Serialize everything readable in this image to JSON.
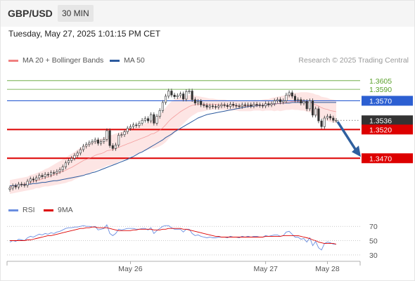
{
  "header": {
    "pair": "GBP/USD",
    "timeframe": "30 MIN"
  },
  "datetime": "Tuesday, May 27, 2025 1:01:15 PM CET",
  "legend": {
    "ma20": {
      "label": "MA 20 + Bollinger Bands",
      "color": "#f08080"
    },
    "ma50": {
      "label": "MA 50",
      "color": "#2c5a9e"
    }
  },
  "credit": "Research © 2025 Trading Central",
  "rsi_legend": {
    "rsi": {
      "label": "RSI",
      "color": "#6a8ee0"
    },
    "ma9": {
      "label": "9MA",
      "color": "#dd0000"
    }
  },
  "colors": {
    "bull": "#ffffff",
    "bear": "#333333",
    "support": "#dd0000",
    "resistance_blue": "#2c5fd2",
    "target_green": "#5aa02c",
    "arrow": "#2f5f9e",
    "current": "#333333"
  },
  "chart_data": [
    {
      "type": "candlestick",
      "title": "GBP/USD",
      "x_ticks": [
        "May 26",
        "May 27",
        "May 28"
      ],
      "ylim": [
        1.3408,
        1.3628
      ],
      "levels": [
        {
          "label": "1.3605",
          "value": 1.3605,
          "style": "target"
        },
        {
          "label": "1.3590",
          "value": 1.359,
          "style": "target"
        },
        {
          "label": "1.3570",
          "value": 1.357,
          "style": "resistance"
        },
        {
          "label": "1.3536",
          "value": 1.3536,
          "style": "current"
        },
        {
          "label": "1.3520",
          "value": 1.352,
          "style": "support"
        },
        {
          "label": "1.3470",
          "value": 1.347,
          "style": "support"
        }
      ],
      "close": [
        1.3418,
        1.3422,
        1.342,
        1.3425,
        1.3424,
        1.3423,
        1.343,
        1.3434,
        1.3432,
        1.3436,
        1.344,
        1.3438,
        1.3442,
        1.3441,
        1.3445,
        1.3444,
        1.3447,
        1.345,
        1.3455,
        1.3462,
        1.3466,
        1.347,
        1.3475,
        1.3479,
        1.3485,
        1.3491,
        1.3494,
        1.3497,
        1.3499,
        1.3502,
        1.3496,
        1.3499,
        1.3503,
        1.3518,
        1.3492,
        1.3487,
        1.3493,
        1.351,
        1.3511,
        1.3516,
        1.3522,
        1.3525,
        1.3528,
        1.3527,
        1.3531,
        1.3536,
        1.3539,
        1.3535,
        1.3546,
        1.3531,
        1.3543,
        1.3553,
        1.3567,
        1.3578,
        1.3587,
        1.358,
        1.3577,
        1.3579,
        1.3582,
        1.3573,
        1.3586,
        1.3587,
        1.3572,
        1.3566,
        1.3569,
        1.3563,
        1.3562,
        1.3559,
        1.3561,
        1.356,
        1.3559,
        1.3561,
        1.3563,
        1.3562,
        1.356,
        1.3564,
        1.3562,
        1.3561,
        1.356,
        1.3563,
        1.3562,
        1.3563,
        1.3561,
        1.3564,
        1.3563,
        1.3562,
        1.3561,
        1.3565,
        1.3563,
        1.3565,
        1.357,
        1.3572,
        1.3568,
        1.357,
        1.358,
        1.3584,
        1.3578,
        1.3571,
        1.3572,
        1.3566,
        1.3569,
        1.3556,
        1.357,
        1.3545,
        1.3556,
        1.3535,
        1.3525,
        1.354,
        1.3543,
        1.354,
        1.3536,
        1.3536
      ],
      "ma20": [
        1.342,
        1.3421,
        1.3422,
        1.3423,
        1.3424,
        1.3425,
        1.3426,
        1.3428,
        1.3429,
        1.3431,
        1.3432,
        1.3434,
        1.3436,
        1.3437,
        1.3439,
        1.3441,
        1.3443,
        1.3445,
        1.3447,
        1.3449,
        1.3452,
        1.3454,
        1.3457,
        1.346,
        1.3463,
        1.3466,
        1.3468,
        1.347,
        1.3472,
        1.3475,
        1.3477,
        1.3478,
        1.348,
        1.3483,
        1.3484,
        1.3485,
        1.3487,
        1.3489,
        1.3491,
        1.3493,
        1.3495,
        1.3497,
        1.3499,
        1.3501,
        1.3503,
        1.3505,
        1.3507,
        1.3509,
        1.3512,
        1.3513,
        1.3516,
        1.3519,
        1.3523,
        1.3528,
        1.3534,
        1.3539,
        1.3543,
        1.3547,
        1.3551,
        1.3554,
        1.3557,
        1.356,
        1.3562,
        1.3563,
        1.3564,
        1.3564,
        1.3564,
        1.3564,
        1.3564,
        1.3564,
        1.3564,
        1.3563,
        1.3563,
        1.3563,
        1.3562,
        1.3562,
        1.3562,
        1.3562,
        1.3561,
        1.3561,
        1.3561,
        1.3561,
        1.3561,
        1.3562,
        1.3562,
        1.3562,
        1.3562,
        1.3563,
        1.3563,
        1.3564,
        1.3564,
        1.3565,
        1.3565,
        1.3566,
        1.3567,
        1.3568,
        1.3569,
        1.3569,
        1.3569,
        1.3569,
        1.3569,
        1.3568,
        1.3567,
        1.3565,
        1.3563,
        1.3561,
        1.3558,
        1.3556,
        1.3555,
        1.3553,
        1.3552,
        1.3551
      ],
      "bb_width": [
        0.0012,
        0.0012,
        0.0012,
        0.0012,
        0.0012,
        0.0012,
        0.0012,
        0.0013,
        0.0013,
        0.0013,
        0.0014,
        0.0014,
        0.0015,
        0.0016,
        0.0017,
        0.0018,
        0.0019,
        0.002,
        0.0021,
        0.0022,
        0.0023,
        0.0024,
        0.0024,
        0.0025,
        0.0025,
        0.0026,
        0.0026,
        0.0026,
        0.0026,
        0.0026,
        0.0026,
        0.0026,
        0.0026,
        0.0026,
        0.0026,
        0.0026,
        0.0026,
        0.0025,
        0.0025,
        0.0025,
        0.0024,
        0.0024,
        0.0024,
        0.0024,
        0.0024,
        0.0024,
        0.0024,
        0.0024,
        0.0025,
        0.0026,
        0.0027,
        0.0028,
        0.0029,
        0.003,
        0.003,
        0.003,
        0.0029,
        0.0028,
        0.0026,
        0.0024,
        0.0022,
        0.002,
        0.0018,
        0.0016,
        0.0014,
        0.0013,
        0.0012,
        0.0011,
        0.001,
        0.001,
        0.0009,
        0.0009,
        0.0009,
        0.0009,
        0.0009,
        0.0009,
        0.0009,
        0.0009,
        0.0009,
        0.0009,
        0.0009,
        0.0009,
        0.0009,
        0.0009,
        0.0009,
        0.0009,
        0.001,
        0.001,
        0.001,
        0.0011,
        0.0012,
        0.0012,
        0.0013,
        0.0013,
        0.0013,
        0.0014,
        0.0014,
        0.0015,
        0.0015,
        0.0016,
        0.0016,
        0.0017,
        0.0017,
        0.0018,
        0.0018,
        0.0019,
        0.0019,
        0.002,
        0.002,
        0.002,
        0.002,
        0.002
      ],
      "ma50": [
        1.3422,
        1.3422,
        1.3423,
        1.3423,
        1.3424,
        1.3424,
        1.3425,
        1.3425,
        1.3426,
        1.3426,
        1.3427,
        1.3428,
        1.3428,
        1.3429,
        1.343,
        1.3431,
        1.3431,
        1.3432,
        1.3433,
        1.3434,
        1.3435,
        1.3436,
        1.3437,
        1.3438,
        1.3439,
        1.344,
        1.3442,
        1.3443,
        1.3445,
        1.3446,
        1.3448,
        1.345,
        1.3452,
        1.3454,
        1.3456,
        1.3458,
        1.346,
        1.3462,
        1.3464,
        1.3466,
        1.3468,
        1.3471,
        1.3473,
        1.3476,
        1.3479,
        1.3481,
        1.3484,
        1.3487,
        1.349,
        1.3493,
        1.3496,
        1.3499,
        1.3502,
        1.3506,
        1.3509,
        1.3512,
        1.3516,
        1.3519,
        1.3522,
        1.3525,
        1.3528,
        1.3531,
        1.3534,
        1.3537,
        1.354,
        1.3542,
        1.3544,
        1.3546,
        1.3547,
        1.3548,
        1.3549,
        1.355,
        1.3551,
        1.3552,
        1.3553,
        1.3554,
        1.3555,
        1.3556,
        1.3557,
        1.3558,
        1.3559,
        1.356,
        1.356,
        1.3561,
        1.3561,
        1.3562,
        1.3562,
        1.3563,
        1.3563,
        1.3564,
        1.3564,
        1.3565,
        1.3565,
        1.3566,
        1.3566,
        1.3566,
        1.3567,
        1.3567,
        1.3567,
        1.3567,
        1.3567,
        1.3567,
        1.3567,
        1.3567,
        1.3567,
        1.3567,
        1.3567,
        1.3567,
        1.3567,
        1.3567,
        1.3567,
        1.3567
      ],
      "forecast": [
        1.3536,
        1.347
      ]
    },
    {
      "type": "line",
      "title": "RSI",
      "ylim": [
        25,
        80
      ],
      "y_ticks": [
        70,
        50,
        30
      ],
      "series": [
        {
          "name": "RSI",
          "values": [
            48,
            50,
            49,
            52,
            51,
            50,
            54,
            56,
            55,
            57,
            59,
            58,
            60,
            59,
            61,
            60,
            62,
            63,
            65,
            67,
            68,
            68,
            69,
            69,
            70,
            71,
            70,
            70,
            69,
            70,
            65,
            66,
            67,
            72,
            60,
            57,
            60,
            66,
            65,
            66,
            67,
            67,
            67,
            66,
            66,
            67,
            67,
            65,
            68,
            60,
            64,
            67,
            70,
            71,
            71,
            68,
            66,
            66,
            66,
            62,
            66,
            66,
            60,
            57,
            58,
            56,
            55,
            54,
            55,
            54,
            54,
            55,
            55,
            55,
            54,
            56,
            55,
            55,
            54,
            56,
            55,
            56,
            55,
            56,
            56,
            55,
            55,
            57,
            56,
            57,
            58,
            58,
            56,
            57,
            62,
            63,
            59,
            55,
            55,
            52,
            53,
            48,
            54,
            43,
            49,
            40,
            37,
            46,
            48,
            47,
            45,
            45
          ]
        },
        {
          "name": "9MA",
          "values": [
            50,
            50,
            50,
            50,
            50,
            50,
            51,
            51,
            52,
            53,
            54,
            55,
            56,
            57,
            57,
            58,
            59,
            60,
            61,
            62,
            63,
            64,
            65,
            66,
            67,
            67,
            68,
            68,
            69,
            69,
            68,
            68,
            68,
            68,
            67,
            66,
            65,
            64,
            64,
            64,
            64,
            64,
            65,
            65,
            66,
            66,
            66,
            66,
            66,
            65,
            65,
            65,
            66,
            66,
            67,
            67,
            67,
            67,
            67,
            66,
            66,
            65,
            64,
            63,
            62,
            61,
            60,
            59,
            58,
            57,
            56,
            56,
            55,
            55,
            55,
            55,
            55,
            55,
            55,
            55,
            55,
            55,
            55,
            55,
            55,
            55,
            55,
            56,
            56,
            56,
            56,
            56,
            56,
            57,
            57,
            57,
            57,
            57,
            57,
            56,
            55,
            54,
            53,
            51,
            50,
            48,
            47,
            46,
            46,
            46,
            46,
            45
          ]
        }
      ]
    }
  ]
}
